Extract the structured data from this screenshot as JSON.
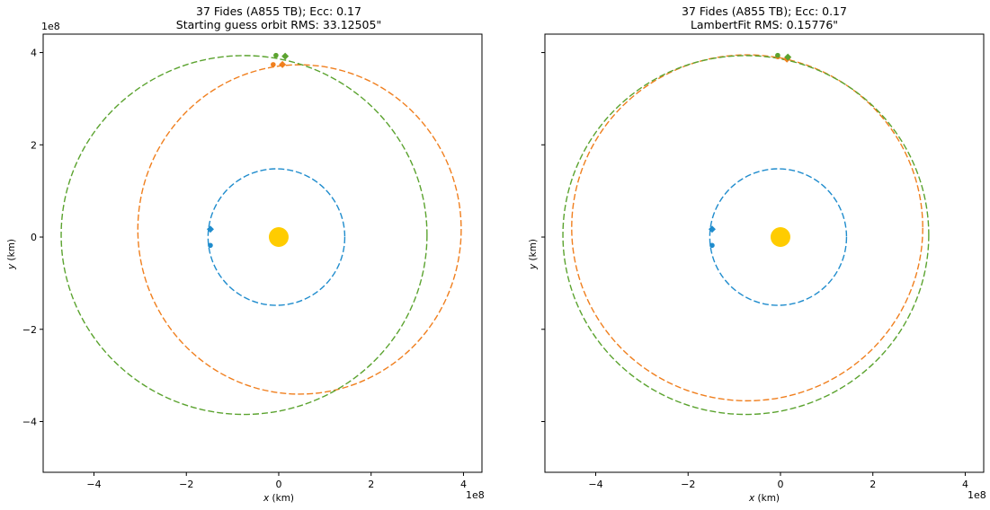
{
  "chart_data": [
    {
      "type": "scatter",
      "title": "37 Fides (A855 TB); Ecc: 0.17",
      "subtitle": "Starting guess orbit RMS: 33.12505\"",
      "xlabel_var": "x",
      "xlabel_unit": "(km)",
      "ylabel_var": "y",
      "ylabel_unit": "(km)",
      "x_offset_label": "1e8",
      "y_offset_label": "1e8",
      "xlim": [
        -5.1,
        4.4
      ],
      "ylim": [
        -5.1,
        4.4
      ],
      "xticks": [
        -4,
        -2,
        0,
        2,
        4
      ],
      "yticks": [
        -4,
        -2,
        0,
        2,
        4
      ],
      "xtick_labels": [
        "−4",
        "−2",
        "0",
        "2",
        "4"
      ],
      "ytick_labels": [
        "−4",
        "−2",
        "0",
        "2",
        "4"
      ],
      "show_ytick_labels": true,
      "sun": {
        "x": 0,
        "y": 0,
        "color": "#ffcc00"
      },
      "orbits": [
        {
          "cx": -0.05,
          "cy": 0,
          "rx": 1.48,
          "ry": 1.48,
          "color": "#1f8ccd",
          "dash": "7 3"
        },
        {
          "cx": 0.45,
          "cy": 0.165,
          "rx": 3.5,
          "ry": 3.57,
          "color": "#f07f1e",
          "dash": "7 3"
        },
        {
          "cx": -0.75,
          "cy": 0.045,
          "rx": 3.96,
          "ry": 3.89,
          "color": "#5ba32f",
          "dash": "7 3"
        }
      ],
      "markers": [
        {
          "x": -1.48,
          "y": 0.17,
          "shape": "diamond",
          "color": "#1f8ccd"
        },
        {
          "x": -1.48,
          "y": -0.18,
          "shape": "circle",
          "color": "#1f8ccd"
        },
        {
          "x": 0.08,
          "y": 3.74,
          "shape": "diamond",
          "color": "#f07f1e"
        },
        {
          "x": -0.12,
          "y": 3.74,
          "shape": "circle",
          "color": "#f07f1e"
        },
        {
          "x": 0.14,
          "y": 3.92,
          "shape": "diamond",
          "color": "#5ba32f"
        },
        {
          "x": -0.06,
          "y": 3.94,
          "shape": "circle",
          "color": "#5ba32f"
        }
      ]
    },
    {
      "type": "scatter",
      "title": "37 Fides (A855 TB); Ecc: 0.17",
      "subtitle": "LambertFit RMS: 0.15776\"",
      "xlabel_var": "x",
      "xlabel_unit": "(km)",
      "ylabel_var": "y",
      "ylabel_unit": "(km)",
      "x_offset_label": "1e8",
      "y_offset_label": "",
      "xlim": [
        -5.1,
        4.4
      ],
      "ylim": [
        -5.1,
        4.4
      ],
      "xticks": [
        -4,
        -2,
        0,
        2,
        4
      ],
      "yticks": [
        -4,
        -2,
        0,
        2,
        4
      ],
      "xtick_labels": [
        "−4",
        "−2",
        "0",
        "2",
        "4"
      ],
      "ytick_labels": [
        "",
        "",
        "",
        "",
        ""
      ],
      "show_ytick_labels": false,
      "sun": {
        "x": 0,
        "y": 0,
        "color": "#ffcc00"
      },
      "orbits": [
        {
          "cx": -0.05,
          "cy": 0,
          "rx": 1.48,
          "ry": 1.48,
          "color": "#1f8ccd",
          "dash": "7 3"
        },
        {
          "cx": -0.72,
          "cy": 0.2,
          "rx": 3.8,
          "ry": 3.75,
          "color": "#f07f1e",
          "dash": "7 3"
        },
        {
          "cx": -0.75,
          "cy": 0.045,
          "rx": 3.96,
          "ry": 3.89,
          "color": "#5ba32f",
          "dash": "7 3"
        }
      ],
      "markers": [
        {
          "x": -1.48,
          "y": 0.17,
          "shape": "diamond",
          "color": "#1f8ccd"
        },
        {
          "x": -1.48,
          "y": -0.18,
          "shape": "circle",
          "color": "#1f8ccd"
        },
        {
          "x": 0.14,
          "y": 3.86,
          "shape": "diamond",
          "color": "#f07f1e"
        },
        {
          "x": -0.06,
          "y": 3.91,
          "shape": "circle",
          "color": "#f07f1e"
        },
        {
          "x": 0.16,
          "y": 3.9,
          "shape": "diamond",
          "color": "#5ba32f"
        },
        {
          "x": -0.06,
          "y": 3.94,
          "shape": "circle",
          "color": "#5ba32f"
        }
      ]
    }
  ]
}
